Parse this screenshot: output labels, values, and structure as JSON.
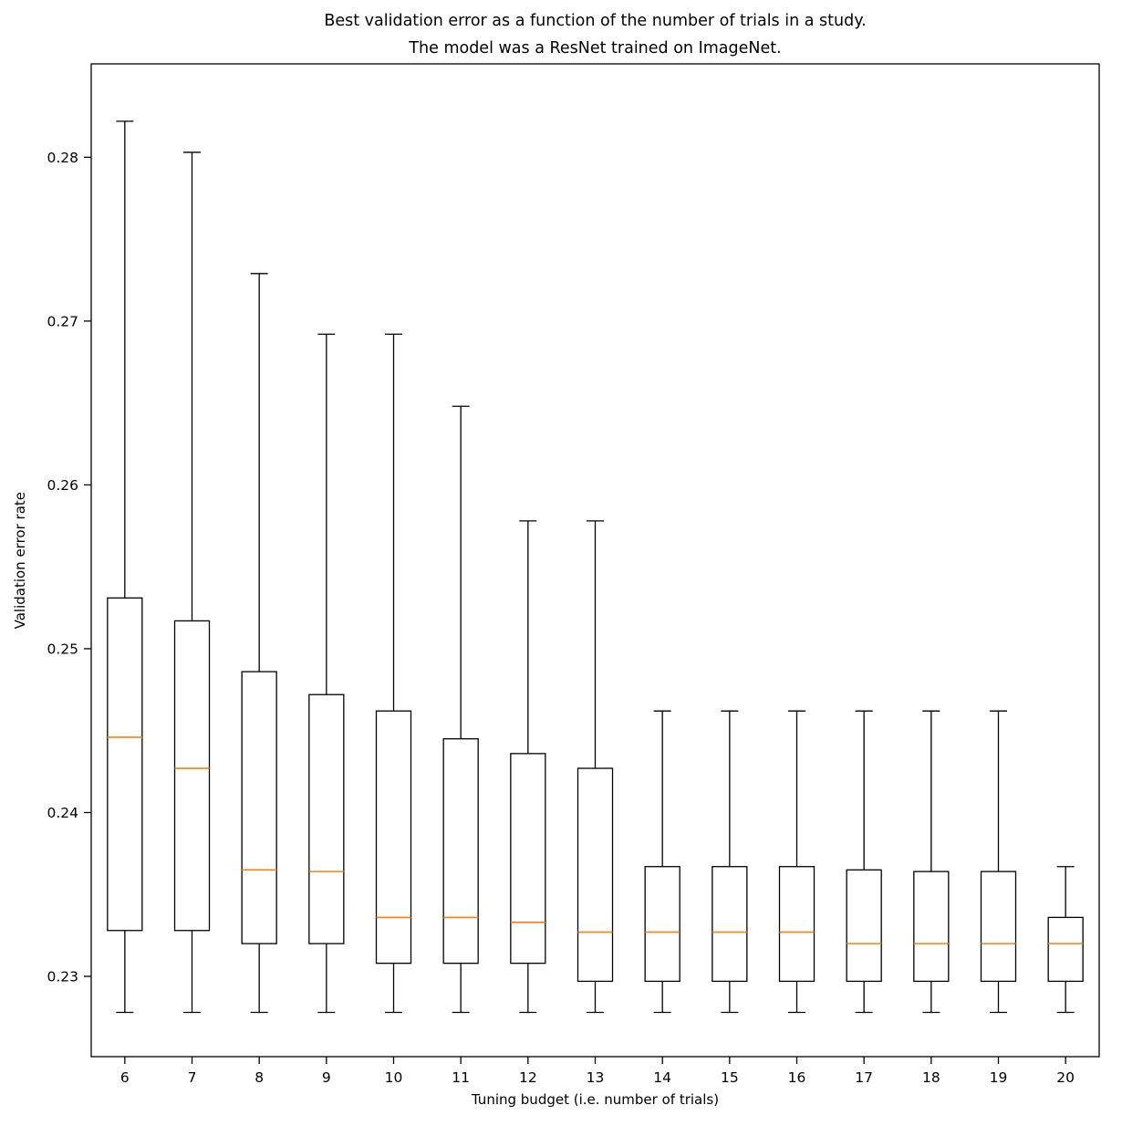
{
  "chart_data": {
    "type": "boxplot",
    "title_lines": [
      "Best validation error as a function of the number of trials in a study.",
      "The model was a ResNet trained on ImageNet."
    ],
    "xlabel": "Tuning budget (i.e. number of trials)",
    "ylabel": "Validation error rate",
    "categories": [
      "6",
      "7",
      "8",
      "9",
      "10",
      "11",
      "12",
      "13",
      "14",
      "15",
      "16",
      "17",
      "18",
      "19",
      "20"
    ],
    "yticks": [
      0.23,
      0.24,
      0.25,
      0.26,
      0.27,
      0.28
    ],
    "ytick_labels": [
      "0.23",
      "0.24",
      "0.25",
      "0.26",
      "0.27",
      "0.28"
    ],
    "ylim": [
      0.2251,
      0.2857
    ],
    "grid": false,
    "legend": "none",
    "box_edge_color": "#000000",
    "box_fill_color": "#ffffff",
    "median_color": "#ff7f0e",
    "series": [
      {
        "category": "6",
        "whislo": 0.2278,
        "q1": 0.2328,
        "med": 0.2446,
        "q3": 0.2531,
        "whishi": 0.2822
      },
      {
        "category": "7",
        "whislo": 0.2278,
        "q1": 0.2328,
        "med": 0.2427,
        "q3": 0.2517,
        "whishi": 0.2803
      },
      {
        "category": "8",
        "whislo": 0.2278,
        "q1": 0.232,
        "med": 0.2365,
        "q3": 0.2486,
        "whishi": 0.2729
      },
      {
        "category": "9",
        "whislo": 0.2278,
        "q1": 0.232,
        "med": 0.2364,
        "q3": 0.2472,
        "whishi": 0.2692
      },
      {
        "category": "10",
        "whislo": 0.2278,
        "q1": 0.2308,
        "med": 0.2336,
        "q3": 0.2462,
        "whishi": 0.2692
      },
      {
        "category": "11",
        "whislo": 0.2278,
        "q1": 0.2308,
        "med": 0.2336,
        "q3": 0.2445,
        "whishi": 0.2648
      },
      {
        "category": "12",
        "whislo": 0.2278,
        "q1": 0.2308,
        "med": 0.2333,
        "q3": 0.2436,
        "whishi": 0.2578
      },
      {
        "category": "13",
        "whislo": 0.2278,
        "q1": 0.2297,
        "med": 0.2327,
        "q3": 0.2427,
        "whishi": 0.2578
      },
      {
        "category": "14",
        "whislo": 0.2278,
        "q1": 0.2297,
        "med": 0.2327,
        "q3": 0.2367,
        "whishi": 0.2462
      },
      {
        "category": "15",
        "whislo": 0.2278,
        "q1": 0.2297,
        "med": 0.2327,
        "q3": 0.2367,
        "whishi": 0.2462
      },
      {
        "category": "16",
        "whislo": 0.2278,
        "q1": 0.2297,
        "med": 0.2327,
        "q3": 0.2367,
        "whishi": 0.2462
      },
      {
        "category": "17",
        "whislo": 0.2278,
        "q1": 0.2297,
        "med": 0.232,
        "q3": 0.2365,
        "whishi": 0.2462
      },
      {
        "category": "18",
        "whislo": 0.2278,
        "q1": 0.2297,
        "med": 0.232,
        "q3": 0.2364,
        "whishi": 0.2462
      },
      {
        "category": "19",
        "whislo": 0.2278,
        "q1": 0.2297,
        "med": 0.232,
        "q3": 0.2364,
        "whishi": 0.2462
      },
      {
        "category": "20",
        "whislo": 0.2278,
        "q1": 0.2297,
        "med": 0.232,
        "q3": 0.2336,
        "whishi": 0.2367
      }
    ]
  }
}
